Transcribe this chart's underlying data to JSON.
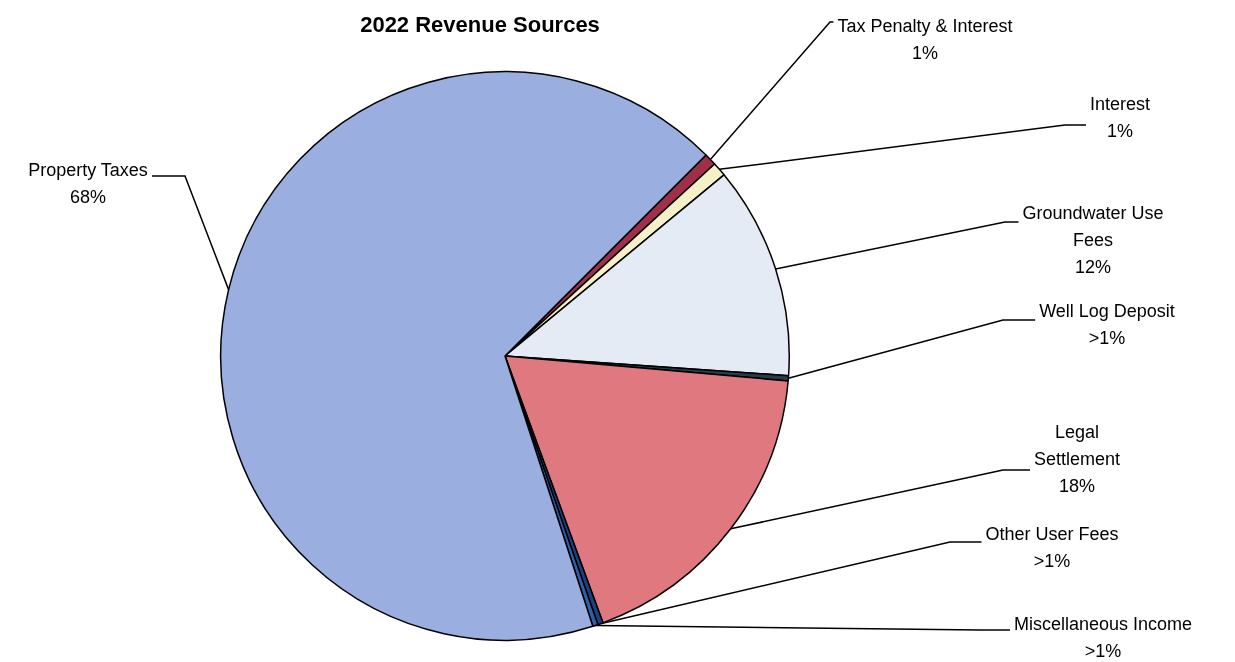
{
  "chart_data": {
    "type": "pie",
    "title": "2022 Revenue Sources",
    "categories": [
      "Tax Penalty & Interest",
      "Interest",
      "Groundwater Use Fees",
      "Well Log Deposit",
      "Legal Settlement",
      "Other User Fees",
      "Miscellaneous Income",
      "Property Taxes"
    ],
    "values": [
      0.7,
      0.8,
      12.1,
      0.3,
      18,
      0.3,
      0.3,
      67.5
    ],
    "value_labels": [
      "1%",
      "1%",
      "12%",
      ">1%",
      "18%",
      ">1%",
      ">1%",
      "68%"
    ],
    "colors": [
      "#a0304a",
      "#f5f0c8",
      "#e4ebf4",
      "#2a3a4a",
      "#e07880",
      "#1f3f7f",
      "#3060a8",
      "#9aaee0"
    ],
    "legend": false
  }
}
